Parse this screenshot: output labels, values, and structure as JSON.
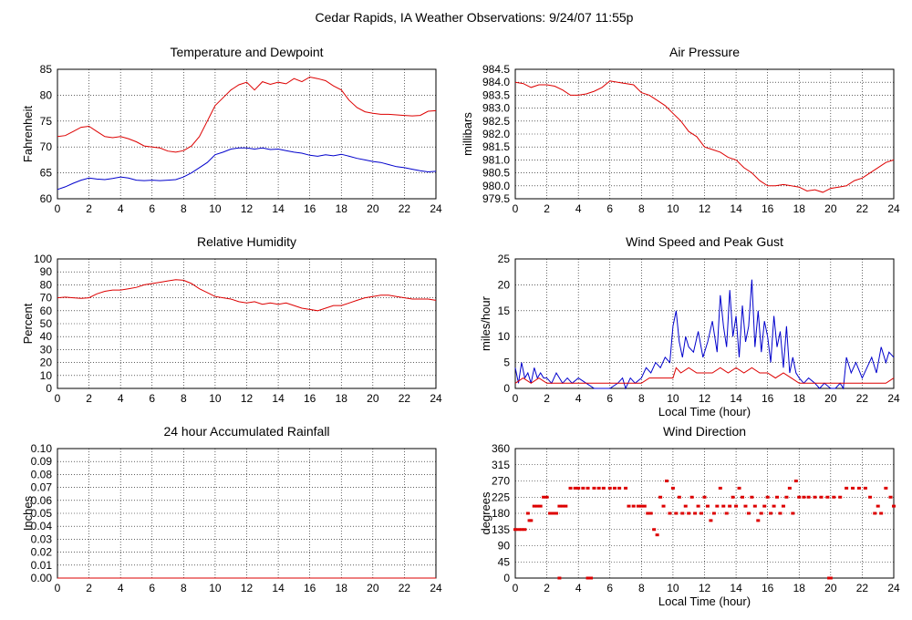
{
  "title": "Cedar Rapids, IA Weather Observations: 9/24/07 11:55p",
  "colors": {
    "red": "#dd0000",
    "blue": "#0000cc",
    "grid": "#000000",
    "axis": "#000000"
  },
  "chart_data": [
    {
      "id": "temp",
      "type": "line",
      "title": "Temperature and Dewpoint",
      "xlabel": "",
      "ylabel": "Fahrenheit",
      "xlim": [
        0,
        24
      ],
      "ylim": [
        60,
        85
      ],
      "xticks": [
        0,
        2,
        4,
        6,
        8,
        10,
        12,
        14,
        16,
        18,
        20,
        22,
        24
      ],
      "yticks": [
        "60",
        "65",
        "70",
        "75",
        "80",
        "85"
      ],
      "series": [
        {
          "color": "red",
          "x": [
            0,
            0.5,
            1,
            1.5,
            2,
            2.5,
            3,
            3.5,
            4,
            4.5,
            5,
            5.5,
            6,
            6.5,
            7,
            7.5,
            8,
            8.5,
            9,
            9.5,
            10,
            10.5,
            11,
            11.5,
            12,
            12.5,
            13,
            13.5,
            14,
            14.5,
            15,
            15.5,
            16,
            16.5,
            17,
            17.5,
            18,
            18.5,
            19,
            19.5,
            20,
            20.5,
            21,
            21.5,
            22,
            22.5,
            23,
            23.5,
            24
          ],
          "y": [
            72,
            72.2,
            73,
            73.8,
            74,
            73,
            72,
            71.8,
            72,
            71.6,
            71,
            70.2,
            70,
            69.8,
            69.2,
            69,
            69.3,
            70.2,
            72,
            75,
            78,
            79.5,
            81,
            82,
            82.5,
            81,
            82.6,
            82.1,
            82.5,
            82.2,
            83.2,
            82.6,
            83.5,
            83.2,
            82.8,
            81.8,
            81,
            79,
            77.6,
            76.8,
            76.5,
            76.3,
            76.3,
            76.2,
            76.1,
            76,
            76.1,
            76.9,
            77
          ]
        },
        {
          "color": "blue",
          "x": [
            0,
            0.5,
            1,
            1.5,
            2,
            2.5,
            3,
            3.5,
            4,
            4.5,
            5,
            5.5,
            6,
            6.5,
            7,
            7.5,
            8,
            8.5,
            9,
            9.5,
            10,
            10.5,
            11,
            11.5,
            12,
            12.5,
            13,
            13.5,
            14,
            14.5,
            15,
            15.5,
            16,
            16.5,
            17,
            17.5,
            18,
            18.5,
            19,
            19.5,
            20,
            20.5,
            21,
            21.5,
            22,
            22.5,
            23,
            23.5,
            24
          ],
          "y": [
            61.8,
            62.3,
            63,
            63.6,
            64,
            63.8,
            63.7,
            63.9,
            64.2,
            64,
            63.6,
            63.5,
            63.6,
            63.5,
            63.6,
            63.7,
            64.2,
            65,
            66,
            67,
            68.5,
            69,
            69.6,
            69.8,
            69.8,
            69.6,
            69.8,
            69.5,
            69.6,
            69.3,
            69,
            68.8,
            68.4,
            68.2,
            68.5,
            68.3,
            68.6,
            68.2,
            67.8,
            67.5,
            67.2,
            67,
            66.6,
            66.2,
            66,
            65.7,
            65.4,
            65.2,
            65.3
          ]
        }
      ]
    },
    {
      "id": "pres",
      "type": "line",
      "title": "Air Pressure",
      "xlabel": "",
      "ylabel": "millibars",
      "xlim": [
        0,
        24
      ],
      "ylim": [
        979.5,
        984.5
      ],
      "xticks": [
        0,
        2,
        4,
        6,
        8,
        10,
        12,
        14,
        16,
        18,
        20,
        22,
        24
      ],
      "yticks": [
        "979.5",
        "980.0",
        "980.5",
        "981.0",
        "981.5",
        "982.0",
        "982.5",
        "983.0",
        "983.5",
        "984.0",
        "984.5"
      ],
      "series": [
        {
          "color": "red",
          "x": [
            0,
            0.5,
            1,
            1.5,
            2,
            2.5,
            3,
            3.5,
            4,
            4.5,
            5,
            5.5,
            6,
            6.5,
            7,
            7.5,
            8,
            8.5,
            9,
            9.5,
            10,
            10.5,
            11,
            11.5,
            12,
            12.5,
            13,
            13.5,
            14,
            14.5,
            15,
            15.5,
            16,
            16.5,
            17,
            17.5,
            18,
            18.5,
            19,
            19.5,
            20,
            20.5,
            21,
            21.5,
            22,
            22.5,
            23,
            23.5,
            24
          ],
          "y": [
            984,
            983.95,
            983.8,
            983.9,
            983.9,
            983.85,
            983.7,
            983.5,
            983.5,
            983.55,
            983.65,
            983.8,
            984.05,
            984,
            983.95,
            983.9,
            983.6,
            983.5,
            983.3,
            983.1,
            982.8,
            982.5,
            982.1,
            981.9,
            981.5,
            981.4,
            981.3,
            981.1,
            981,
            980.7,
            980.5,
            980.2,
            980,
            980,
            980.05,
            980,
            979.95,
            979.8,
            979.85,
            979.75,
            979.9,
            979.95,
            980,
            980.2,
            980.3,
            980.5,
            980.7,
            980.9,
            981
          ]
        }
      ]
    },
    {
      "id": "rh",
      "type": "line",
      "title": "Relative Humidity",
      "xlabel": "",
      "ylabel": "Percent",
      "xlim": [
        0,
        24
      ],
      "ylim": [
        0,
        100
      ],
      "xticks": [
        0,
        2,
        4,
        6,
        8,
        10,
        12,
        14,
        16,
        18,
        20,
        22,
        24
      ],
      "yticks": [
        "0",
        "10",
        "20",
        "30",
        "40",
        "50",
        "60",
        "70",
        "80",
        "90",
        "100"
      ],
      "series": [
        {
          "color": "red",
          "x": [
            0,
            0.5,
            1,
            1.5,
            2,
            2.5,
            3,
            3.5,
            4,
            4.5,
            5,
            5.5,
            6,
            6.5,
            7,
            7.5,
            8,
            8.5,
            9,
            9.5,
            10,
            10.5,
            11,
            11.5,
            12,
            12.5,
            13,
            13.5,
            14,
            14.5,
            15,
            15.5,
            16,
            16.5,
            17,
            17.5,
            18,
            18.5,
            19,
            19.5,
            20,
            20.5,
            21,
            21.5,
            22,
            22.5,
            23,
            23.5,
            24
          ],
          "y": [
            70,
            70.5,
            70,
            69.5,
            70,
            73,
            75,
            76,
            76,
            77,
            78,
            80,
            81,
            82,
            83,
            84,
            83.5,
            81,
            77,
            74,
            71,
            70,
            69,
            67,
            66,
            67,
            65,
            66,
            65,
            66,
            64,
            62,
            61,
            60,
            62,
            64,
            64,
            66,
            68,
            70,
            71,
            72,
            72,
            71,
            70,
            69,
            69,
            69,
            68
          ]
        }
      ]
    },
    {
      "id": "wind",
      "type": "line",
      "title": "Wind Speed and Peak Gust",
      "xlabel": "Local Time (hour)",
      "ylabel": "miles/hour",
      "xlim": [
        0,
        24
      ],
      "ylim": [
        0,
        25
      ],
      "xticks": [
        0,
        2,
        4,
        6,
        8,
        10,
        12,
        14,
        16,
        18,
        20,
        22,
        24
      ],
      "yticks": [
        "0",
        "5",
        "10",
        "15",
        "20",
        "25"
      ],
      "series": [
        {
          "color": "blue",
          "x": [
            0,
            0.2,
            0.4,
            0.6,
            0.8,
            1,
            1.2,
            1.4,
            1.6,
            1.8,
            2,
            2.3,
            2.6,
            3,
            3.3,
            3.6,
            4,
            4.5,
            5,
            5.5,
            6,
            6.5,
            6.8,
            7,
            7.3,
            7.6,
            8,
            8.3,
            8.6,
            8.9,
            9.2,
            9.5,
            9.8,
            10,
            10.2,
            10.4,
            10.6,
            10.8,
            11,
            11.3,
            11.6,
            11.9,
            12.2,
            12.5,
            12.8,
            13,
            13.2,
            13.4,
            13.6,
            13.8,
            14,
            14.2,
            14.4,
            14.6,
            14.8,
            15,
            15.2,
            15.4,
            15.6,
            15.8,
            16,
            16.2,
            16.4,
            16.6,
            16.8,
            17,
            17.2,
            17.4,
            17.6,
            17.8,
            18,
            18.3,
            18.6,
            19,
            19.3,
            19.6,
            20,
            20.3,
            20.6,
            20.8,
            21,
            21.3,
            21.6,
            22,
            22.3,
            22.6,
            22.9,
            23.2,
            23.5,
            23.7,
            24
          ],
          "y": [
            4,
            1,
            5,
            2,
            3,
            1,
            4,
            2,
            3,
            2,
            2,
            1,
            3,
            1,
            2,
            1,
            2,
            1,
            0,
            0,
            0,
            1,
            2,
            0,
            2,
            1,
            2,
            4,
            3,
            5,
            4,
            6,
            5,
            12,
            15,
            9,
            6,
            10,
            8,
            7,
            11,
            6,
            9,
            13,
            7,
            18,
            12,
            8,
            19,
            10,
            14,
            6,
            16,
            9,
            12,
            21,
            8,
            15,
            7,
            13,
            10,
            5,
            14,
            8,
            11,
            4,
            12,
            3,
            6,
            3,
            2,
            1,
            2,
            1,
            0,
            1,
            0,
            0,
            1,
            0,
            6,
            3,
            5,
            2,
            4,
            6,
            3,
            8,
            5,
            7,
            6
          ]
        },
        {
          "color": "red",
          "x": [
            0,
            0.5,
            1,
            1.5,
            2,
            3,
            4,
            5,
            6,
            7,
            8,
            8.5,
            9,
            9.5,
            10,
            10.2,
            10.5,
            11,
            11.5,
            12,
            12.5,
            13,
            13.5,
            14,
            14.5,
            15,
            15.5,
            16,
            16.5,
            17,
            17.5,
            18,
            19,
            20,
            21,
            22,
            23,
            23.5,
            24
          ],
          "y": [
            1,
            2,
            1,
            2,
            1,
            1,
            1,
            1,
            1,
            1,
            1,
            2,
            2,
            2,
            2,
            4,
            3,
            4,
            3,
            3,
            3,
            4,
            3,
            4,
            3,
            4,
            3,
            3,
            2,
            3,
            2,
            1,
            1,
            1,
            1,
            1,
            1,
            1,
            2
          ]
        }
      ]
    },
    {
      "id": "rain",
      "type": "line",
      "title": "24 hour Accumulated Rainfall",
      "xlabel": "",
      "ylabel": "Inches",
      "xlim": [
        0,
        24
      ],
      "ylim": [
        0,
        0.1
      ],
      "xticks": [
        0,
        2,
        4,
        6,
        8,
        10,
        12,
        14,
        16,
        18,
        20,
        22,
        24
      ],
      "yticks": [
        "0.00",
        "0.01",
        "0.02",
        "0.03",
        "0.04",
        "0.05",
        "0.06",
        "0.07",
        "0.08",
        "0.09",
        "0.10"
      ],
      "series": [
        {
          "color": "red",
          "x": [
            0,
            24
          ],
          "y": [
            0,
            0
          ]
        }
      ]
    },
    {
      "id": "dir",
      "type": "scatter",
      "title": "Wind Direction",
      "xlabel": "Local Time (hour)",
      "ylabel": "degrees",
      "xlim": [
        0,
        24
      ],
      "ylim": [
        0,
        360
      ],
      "xticks": [
        0,
        2,
        4,
        6,
        8,
        10,
        12,
        14,
        16,
        18,
        20,
        22,
        24
      ],
      "yticks": [
        "0",
        "45",
        "90",
        "135",
        "180",
        "225",
        "270",
        "315",
        "360"
      ],
      "series": [
        {
          "color": "red",
          "x": [
            0,
            0.2,
            0.4,
            0.6,
            0.8,
            0.9,
            1.0,
            1.2,
            1.4,
            1.6,
            1.8,
            2.0,
            2.2,
            2.4,
            2.6,
            2.8,
            3.0,
            3.2,
            3.5,
            3.8,
            4.0,
            4.3,
            4.6,
            5.0,
            5.3,
            5.6,
            6.0,
            6.3,
            6.6,
            7.0,
            7.2,
            7.5,
            7.8,
            8.0,
            8.2,
            8.4,
            8.6,
            8.8,
            9.0,
            9.2,
            9.4,
            9.6,
            9.8,
            10.0,
            10.2,
            10.4,
            10.6,
            10.8,
            11.0,
            11.2,
            11.4,
            11.6,
            11.8,
            12.0,
            12.2,
            12.4,
            12.6,
            12.8,
            13.0,
            13.2,
            13.4,
            13.6,
            13.8,
            14.0,
            14.2,
            14.4,
            14.6,
            14.8,
            15.0,
            15.2,
            15.4,
            15.6,
            15.8,
            16.0,
            16.2,
            16.4,
            16.6,
            16.8,
            17.0,
            17.2,
            17.4,
            17.6,
            17.8,
            18.0,
            18.3,
            18.6,
            19.0,
            19.4,
            19.8,
            20.2,
            20.6,
            21.0,
            21.4,
            21.8,
            22.2,
            22.5,
            22.8,
            23.0,
            23.2,
            23.5,
            23.8,
            24.0
          ],
          "y": [
            135,
            135,
            135,
            135,
            180,
            160,
            160,
            200,
            200,
            200,
            225,
            225,
            180,
            180,
            180,
            200,
            200,
            200,
            250,
            250,
            250,
            250,
            250,
            250,
            250,
            250,
            250,
            250,
            250,
            250,
            200,
            200,
            200,
            200,
            200,
            180,
            180,
            135,
            120,
            225,
            200,
            270,
            180,
            250,
            180,
            225,
            180,
            200,
            180,
            225,
            180,
            200,
            180,
            225,
            200,
            160,
            180,
            200,
            250,
            200,
            180,
            200,
            225,
            200,
            250,
            225,
            200,
            180,
            225,
            200,
            160,
            180,
            200,
            225,
            180,
            200,
            225,
            180,
            200,
            225,
            250,
            180,
            270,
            225,
            225,
            225,
            225,
            225,
            225,
            225,
            225,
            250,
            250,
            250,
            250,
            225,
            180,
            200,
            180,
            250,
            225,
            200
          ]
        },
        {
          "color": "red",
          "x": [
            2.8,
            4.6,
            4.8,
            19.9,
            20.0
          ],
          "y": [
            0,
            0,
            0,
            0,
            0
          ]
        }
      ]
    }
  ]
}
